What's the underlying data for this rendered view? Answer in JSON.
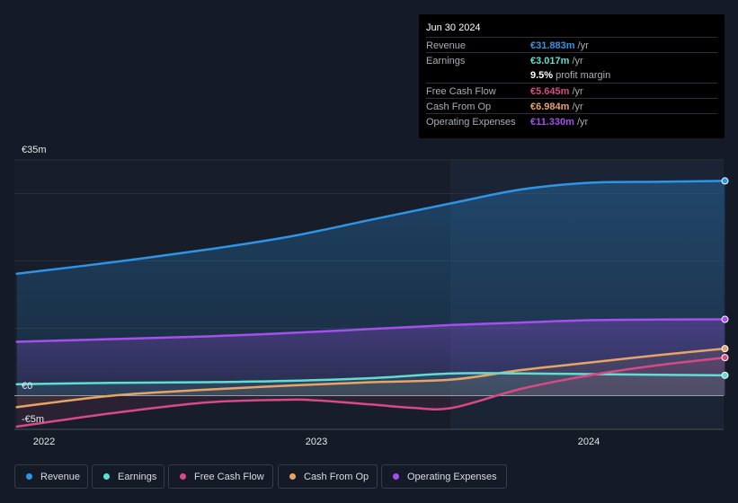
{
  "chart_data": {
    "type": "area",
    "currency_unit": "m",
    "y_axis": {
      "top_label": "€35m",
      "zero_label": "€0",
      "bottom_label": "-€5m",
      "ylim": [
        -5,
        35
      ]
    },
    "x_axis": {
      "ticks": [
        "2022",
        "2023",
        "2024"
      ],
      "xlim": [
        2021.9,
        2024.5
      ]
    },
    "series": [
      {
        "name": "Revenue",
        "color": "#2e95e6",
        "x": [
          2021.9,
          2022.25,
          2022.6,
          2022.9,
          2023.2,
          2023.5,
          2023.75,
          2024.0,
          2024.25,
          2024.5
        ],
        "values": [
          18.1,
          19.8,
          21.7,
          23.6,
          26.1,
          28.6,
          30.6,
          31.6,
          31.75,
          31.88
        ]
      },
      {
        "name": "Operating Expenses",
        "color": "#a550ec",
        "x": [
          2021.9,
          2022.25,
          2022.6,
          2022.9,
          2023.2,
          2023.5,
          2023.75,
          2024.0,
          2024.25,
          2024.5
        ],
        "values": [
          8.0,
          8.4,
          8.8,
          9.3,
          9.9,
          10.5,
          10.85,
          11.2,
          11.3,
          11.33
        ]
      },
      {
        "name": "Cash From Op",
        "color": "#e6a566",
        "x": [
          2021.9,
          2022.25,
          2022.6,
          2022.9,
          2023.2,
          2023.5,
          2023.75,
          2024.0,
          2024.25,
          2024.5
        ],
        "values": [
          -1.7,
          0.0,
          0.9,
          1.5,
          2.0,
          2.4,
          3.8,
          4.9,
          6.0,
          6.98
        ]
      },
      {
        "name": "Earnings",
        "color": "#5fdfd0",
        "x": [
          2021.9,
          2022.25,
          2022.6,
          2022.9,
          2023.2,
          2023.5,
          2023.75,
          2024.0,
          2024.25,
          2024.5
        ],
        "values": [
          1.7,
          1.9,
          2.0,
          2.2,
          2.6,
          3.3,
          3.3,
          3.2,
          3.1,
          3.02
        ]
      },
      {
        "name": "Free Cash Flow",
        "color": "#d84a86",
        "x": [
          2021.9,
          2022.25,
          2022.6,
          2022.9,
          2023.0,
          2023.2,
          2023.35,
          2023.5,
          2023.75,
          2024.0,
          2024.25,
          2024.5
        ],
        "values": [
          -4.6,
          -2.6,
          -1.0,
          -0.6,
          -0.7,
          -1.3,
          -1.8,
          -1.8,
          1.0,
          3.0,
          4.5,
          5.65
        ]
      }
    ]
  },
  "tooltip": {
    "date": "Jun 30 2024",
    "rows": [
      {
        "label": "Revenue",
        "value": "€31.883m",
        "unit": "/yr",
        "color": "#2e95e6"
      },
      {
        "label": "Earnings",
        "value": "€3.017m",
        "unit": "/yr",
        "color": "#5fdfd0"
      },
      {
        "label": "",
        "value": "9.5%",
        "unit": "profit margin",
        "color": "#ffffff"
      },
      {
        "label": "Free Cash Flow",
        "value": "€5.645m",
        "unit": "/yr",
        "color": "#d84a86"
      },
      {
        "label": "Cash From Op",
        "value": "€6.984m",
        "unit": "/yr",
        "color": "#e6a566"
      },
      {
        "label": "Operating Expenses",
        "value": "€11.330m",
        "unit": "/yr",
        "color": "#a550ec"
      }
    ]
  },
  "legend": [
    {
      "label": "Revenue",
      "color": "#2e95e6"
    },
    {
      "label": "Earnings",
      "color": "#5fdfd0"
    },
    {
      "label": "Free Cash Flow",
      "color": "#d84a86"
    },
    {
      "label": "Cash From Op",
      "color": "#e6a566"
    },
    {
      "label": "Operating Expenses",
      "color": "#a550ec"
    }
  ]
}
